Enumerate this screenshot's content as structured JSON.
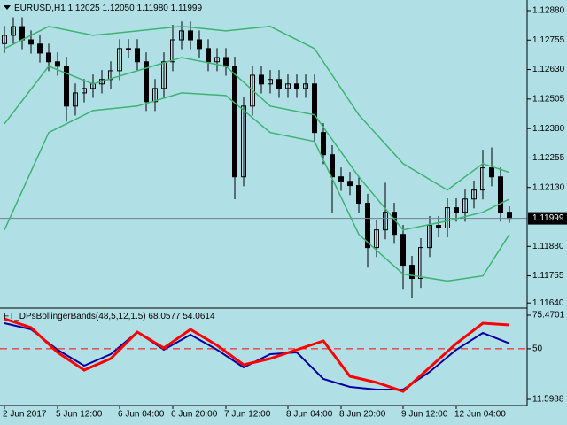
{
  "chart_data": [
    {
      "type": "candlestick",
      "title": "EURUSD,H1",
      "ohlc_labels": [
        "1.12025",
        "1.12050",
        "1.11980",
        "1.11999"
      ],
      "open": [
        1.1274,
        1.12775,
        1.12812,
        1.12756,
        1.12738,
        1.127,
        1.12663,
        1.12644,
        1.12475,
        1.12531,
        1.1255,
        1.12569,
        1.12588,
        1.12625,
        1.12719,
        1.12719,
        1.12663,
        1.12494,
        1.1255,
        1.12663,
        1.12756,
        1.12794,
        1.12756,
        1.12719,
        1.12663,
        1.12681,
        1.12644,
        1.12175,
        1.12475,
        1.12606,
        1.12569,
        1.12588,
        1.1255,
        1.12569,
        1.1255,
        1.12569,
        1.12363,
        1.12269,
        1.12175,
        1.12156,
        1.12138,
        1.12063,
        1.11875,
        1.1195,
        1.12025,
        1.11931,
        1.118,
        1.11744,
        1.11875,
        1.11969,
        1.11958,
        1.12044,
        1.12025,
        1.12081,
        1.12119,
        1.12213,
        1.12175,
        1.12025
      ],
      "high": [
        1.12815,
        1.12852,
        1.12852,
        1.12796,
        1.12778,
        1.1274,
        1.12703,
        1.12684,
        1.12571,
        1.1259,
        1.12609,
        1.12628,
        1.12665,
        1.12759,
        1.12759,
        1.12759,
        1.12703,
        1.1259,
        1.12703,
        1.1282,
        1.12834,
        1.12834,
        1.12796,
        1.12759,
        1.12721,
        1.12721,
        1.12684,
        1.12515,
        1.12646,
        1.12646,
        1.12628,
        1.12628,
        1.12609,
        1.12609,
        1.12609,
        1.12609,
        1.12403,
        1.12309,
        1.12215,
        1.12196,
        1.12178,
        1.12103,
        1.1199,
        1.1215,
        1.12065,
        1.11971,
        1.1184,
        1.11915,
        1.12009,
        1.12009,
        1.12084,
        1.12084,
        1.12121,
        1.12159,
        1.1229,
        1.123,
        1.12215,
        1.1205
      ],
      "low": [
        1.127,
        1.12735,
        1.12716,
        1.12698,
        1.1266,
        1.12623,
        1.12604,
        1.1241,
        1.12435,
        1.12491,
        1.1251,
        1.12529,
        1.12548,
        1.12585,
        1.12679,
        1.12623,
        1.12454,
        1.12454,
        1.1251,
        1.12623,
        1.12716,
        1.12716,
        1.12679,
        1.12623,
        1.12623,
        1.12604,
        1.1208,
        1.12135,
        1.12435,
        1.12529,
        1.12529,
        1.1251,
        1.1251,
        1.1251,
        1.1251,
        1.12323,
        1.12229,
        1.1202,
        1.12116,
        1.12098,
        1.12023,
        1.1179,
        1.11835,
        1.1191,
        1.11891,
        1.117,
        1.1166,
        1.11704,
        1.11835,
        1.11918,
        1.11918,
        1.11985,
        1.11985,
        1.12041,
        1.12079,
        1.12135,
        1.11985,
        1.1198
      ],
      "close": [
        1.12775,
        1.12812,
        1.12756,
        1.12738,
        1.127,
        1.12663,
        1.12644,
        1.12475,
        1.12531,
        1.1255,
        1.12569,
        1.12588,
        1.12625,
        1.12719,
        1.12719,
        1.12663,
        1.12494,
        1.1255,
        1.12663,
        1.12756,
        1.12794,
        1.12756,
        1.12719,
        1.12663,
        1.12681,
        1.12644,
        1.12175,
        1.12475,
        1.12606,
        1.12569,
        1.12588,
        1.1255,
        1.12569,
        1.1255,
        1.12569,
        1.12363,
        1.12269,
        1.12175,
        1.12156,
        1.12138,
        1.12063,
        1.11875,
        1.1195,
        1.12025,
        1.11931,
        1.118,
        1.11744,
        1.11875,
        1.11969,
        1.11958,
        1.12044,
        1.12025,
        1.12081,
        1.12119,
        1.12213,
        1.12175,
        1.12025,
        1.11999
      ],
      "candle_color": "#000000",
      "up_fill": "#b0e0e6",
      "bands": {
        "color": "#3cb371",
        "x": [
          0,
          5,
          10,
          15,
          20,
          25,
          30,
          35,
          40,
          45,
          50,
          54,
          57
        ],
        "series": [
          {
            "values": [
              1.12719,
              1.12813,
              1.12775,
              1.12794,
              1.12813,
              1.12794,
              1.12813,
              1.12719,
              1.12438,
              1.12231,
              1.12119,
              1.12231,
              1.12194
            ]
          },
          {
            "values": [
              1.124,
              1.12644,
              1.12569,
              1.12625,
              1.12681,
              1.12644,
              1.12475,
              1.12438,
              1.12175,
              1.1195,
              1.11988,
              1.12025,
              1.12081
            ]
          },
          {
            "values": [
              1.1195,
              1.12363,
              1.12456,
              1.12475,
              1.12531,
              1.1252,
              1.12363,
              1.12325,
              1.11931,
              1.11763,
              1.11733,
              1.11755,
              1.11931
            ]
          }
        ]
      },
      "xlim": [
        -0.5,
        59
      ],
      "ylim": [
        1.11622,
        1.12925
      ],
      "yticks": [
        {
          "value": 1.1288,
          "label": "1.12880"
        },
        {
          "value": 1.12755,
          "label": "1.12755"
        },
        {
          "value": 1.1263,
          "label": "1.12630"
        },
        {
          "value": 1.12505,
          "label": "1.12505"
        },
        {
          "value": 1.1238,
          "label": "1.12380"
        },
        {
          "value": 1.12255,
          "label": "1.12255"
        },
        {
          "value": 1.1213,
          "label": "1.12130"
        },
        {
          "value": 1.1188,
          "label": "1.11880"
        },
        {
          "value": 1.11755,
          "label": "1.11755"
        },
        {
          "value": 1.1164,
          "label": "1.11640"
        }
      ],
      "current_price": {
        "value": 1.11999,
        "label": "1.11999"
      },
      "xticks": [
        {
          "value": 0,
          "label": "2 Jun 2017"
        },
        {
          "value": 6,
          "label": "5 Jun 12:00"
        },
        {
          "value": 13,
          "label": "6 Jun 04:00"
        },
        {
          "value": 19,
          "label": "6 Jun 20:00"
        },
        {
          "value": 25,
          "label": "7 Jun 12:00"
        },
        {
          "value": 32,
          "label": "8 Jun 04:00"
        },
        {
          "value": 38,
          "label": "8 Jun 20:00"
        },
        {
          "value": 45,
          "label": "9 Jun 12:00"
        },
        {
          "value": 51,
          "label": "12 Jun 04:00"
        }
      ]
    },
    {
      "type": "line",
      "title": "FT_DPsBollingerBands(48,5,12,1.5)",
      "x": [
        0,
        3,
        6,
        9,
        12,
        15,
        18,
        21,
        24,
        27,
        30,
        33,
        36,
        39,
        42,
        45,
        48,
        51,
        54,
        57
      ],
      "series": [
        {
          "color": "#ff0000",
          "values": [
            72.78,
            66.06,
            47.23,
            33.78,
            42.52,
            62.69,
            50.59,
            64.71,
            52.61,
            37.81,
            42.52,
            49.24,
            55.97,
            29.07,
            24.36,
            17.64,
            35.79,
            53.95,
            69.42,
            68.0577
          ]
        },
        {
          "color": "#0000a0",
          "values": [
            69.42,
            64.71,
            49.24,
            37.14,
            45.88,
            62.69,
            49.24,
            60.68,
            49.24,
            35.79,
            45.88,
            47.23,
            27.05,
            21.0,
            18.98,
            18.98,
            32.43,
            49.24,
            62.02,
            54.0614
          ]
        }
      ],
      "level": 50,
      "level_color": "#ff0000",
      "xlim": [
        -0.5,
        59
      ],
      "ylim": [
        6.9,
        79.5
      ],
      "yticks": [
        75.4701,
        50,
        11.5988
      ]
    }
  ]
}
